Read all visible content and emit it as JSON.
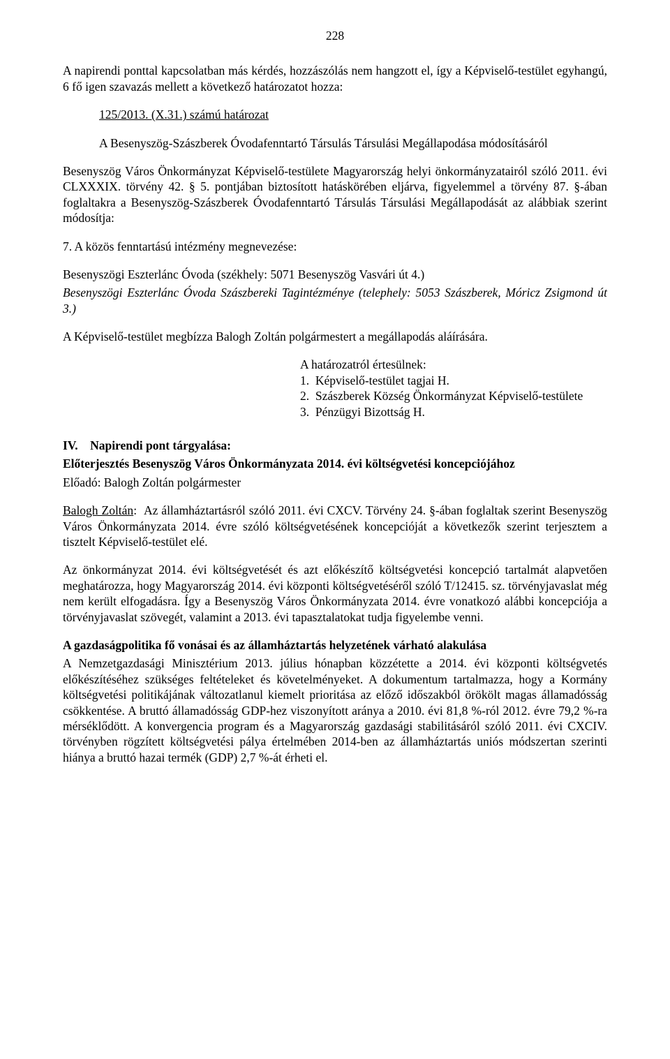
{
  "pageNumber": "228",
  "intro1": "A napirendi ponttal kapcsolatban más kérdés, hozzászólás nem hangzott el, így a Képviselő-testület egyhangú, 6 fő igen szavazás mellett a következő határozatot hozza:",
  "resolutionNumber": "125/2013. (X.31.) számú határozat",
  "resolutionTitle": "A Besenyszög-Szászberek Óvodafenntartó Társulás Társulási Megállapodása módosításáról",
  "body1": "Besenyszög Város Önkormányzat Képviselő-testülete Magyarország helyi önkormányzatairól szóló 2011. évi CLXXXIX. törvény 42. § 5. pontjában biztosított hatáskörében eljárva, figyelemmel a törvény 87. §-ában foglaltakra a Besenyszög-Szászberek Óvodafenntartó Társulás Társulási Megállapodását az alábbiak szerint módosítja:",
  "body2": "7. A közös fenntartású intézmény megnevezése:",
  "body3a": "Besenyszögi Eszterlánc Óvoda (székhely: 5071 Besenyszög Vasvári út 4.)",
  "body3b": "Besenyszögi Eszterlánc Óvoda Szászbereki Tagintézménye (telephely: 5053 Szászberek, Móricz Zsigmond út 3.)",
  "body4": "A Képviselő-testület megbízza Balogh Zoltán polgármestert a megállapodás aláírására.",
  "notifiedHeader": "A határozatról értesülnek:",
  "notified1": "1.  Képviselő-testület tagjai H.",
  "notified2": "2.  Szászberek Község Önkormányzat Képviselő-testülete",
  "notified3": "3.  Pénzügyi Bizottság H.",
  "agendaRoman": "IV.",
  "agendaLabel": "Napirendi pont tárgyalása:",
  "agendaTitle": "Előterjesztés Besenyszög Város Önkormányzata 2014. évi költségvetési koncepciójához",
  "presenter": "Előadó: Balogh Zoltán polgármester",
  "speakerName": "Balogh Zoltán",
  "speechPart": ":  Az államháztartásról szóló 2011. évi CXCV. Törvény 24. §-ában foglaltak szerint Besenyszög Város Önkormányzata 2014. évre szóló költségvetésének koncepcióját a következők szerint terjesztem a tisztelt Képviselő-testület elé.",
  "speech2": "Az önkormányzat 2014. évi költségvetését és azt előkészítő költségvetési koncepció tartalmát alapvetően meghatározza, hogy Magyarország 2014. évi központi költségvetéséről szóló T/12415. sz. törvényjavaslat még nem került elfogadásra. Így a Besenyszög Város Önkormányzata 2014. évre vonatkozó alábbi koncepciója a törvényjavaslat szövegét, valamint a 2013. évi tapasztalatokat tudja figyelembe venni.",
  "econHeader": "A gazdaságpolitika fő vonásai és az államháztartás helyzetének várható alakulása",
  "econBody": "A Nemzetgazdasági Minisztérium 2013. július hónapban közzétette a 2014. évi központi költségvetés előkészítéséhez szükséges feltételeket és követelményeket. A dokumentum tartalmazza, hogy a Kormány költségvetési politikájának változatlanul kiemelt prioritása az előző időszakból örökölt magas államadósság csökkentése. A bruttó államadósság GDP-hez viszonyított aránya a 2010. évi 81,8 %-ról 2012. évre 79,2 %-ra mérséklődött. A konvergencia program és a Magyarország gazdasági stabilitásáról szóló 2011. évi CXCIV. törvényben rögzített költségvetési pálya értelmében 2014-ben az államháztartás uniós módszertan szerinti hiánya a bruttó hazai termék (GDP) 2,7 %-át érheti el."
}
